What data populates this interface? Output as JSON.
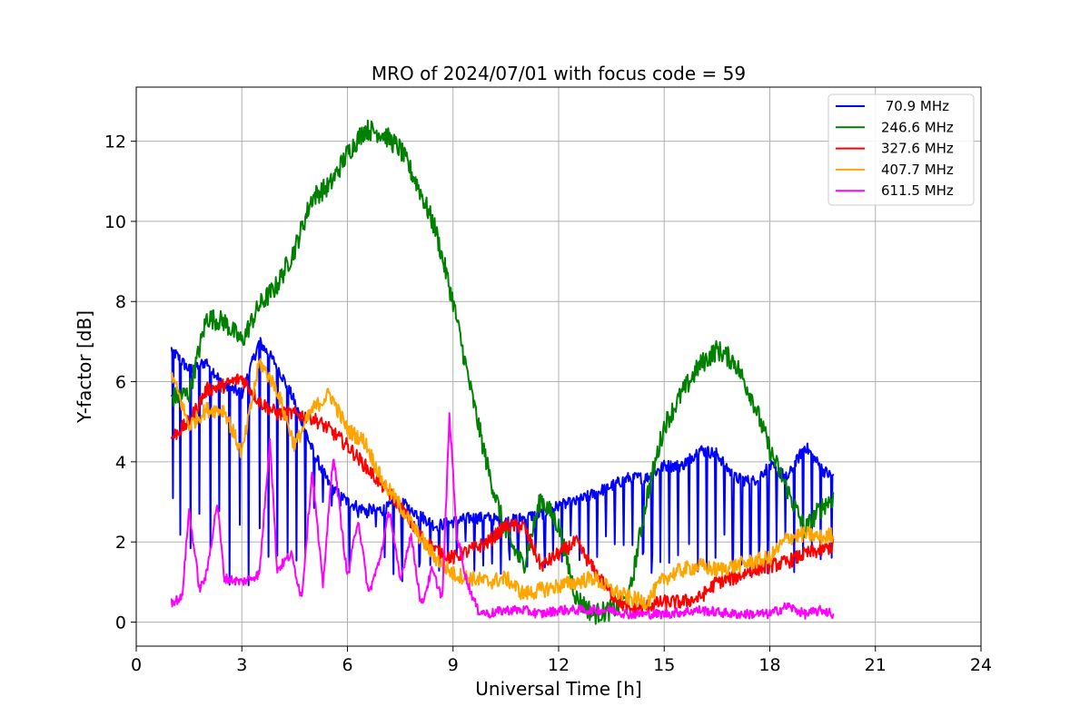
{
  "chart_data": {
    "type": "line",
    "title": "MRO of 2024/07/01 with focus code = 59",
    "xlabel": "Universal Time [h]",
    "ylabel": "Y-factor [dB]",
    "xlim": [
      0,
      24
    ],
    "ylim": [
      -0.6,
      13.35
    ],
    "xticks": [
      0,
      3,
      6,
      9,
      12,
      15,
      18,
      21,
      24
    ],
    "yticks": [
      0,
      2,
      4,
      6,
      8,
      10,
      12
    ],
    "grid": true,
    "legend_position": "top-right",
    "series": [
      {
        "name": " 70.9 MHz",
        "color": "#0000ff",
        "x": [
          1.0,
          1.5,
          2.0,
          2.5,
          3.0,
          3.5,
          4.0,
          4.5,
          5.0,
          5.5,
          6.0,
          6.5,
          7.0,
          7.5,
          8.0,
          8.5,
          9.0,
          9.5,
          10.0,
          10.5,
          11.0,
          11.5,
          12.0,
          12.5,
          13.0,
          13.5,
          14.0,
          14.5,
          15.0,
          15.5,
          16.0,
          16.5,
          17.0,
          17.5,
          18.0,
          18.5,
          19.0,
          19.5,
          19.8
        ],
        "y": [
          6.8,
          6.3,
          6.5,
          5.9,
          5.7,
          7.0,
          6.4,
          5.5,
          4.3,
          3.4,
          3.0,
          2.8,
          2.8,
          3.0,
          2.7,
          2.4,
          2.5,
          2.6,
          2.6,
          2.5,
          2.6,
          2.7,
          2.9,
          3.0,
          3.2,
          3.4,
          3.6,
          3.6,
          3.9,
          3.9,
          4.3,
          4.2,
          3.6,
          3.5,
          3.9,
          3.6,
          4.4,
          3.8,
          3.6
        ],
        "dips": [
          1.05,
          1.25,
          1.55,
          1.8,
          2.1,
          2.35,
          2.65,
          2.95,
          3.2,
          3.5,
          3.75,
          4.0,
          4.3,
          4.55,
          4.8,
          5.05,
          5.3,
          5.55,
          5.8,
          6.05,
          6.3,
          6.55,
          6.8,
          7.05,
          7.3,
          7.55,
          7.8,
          8.05,
          8.35,
          8.6,
          8.85,
          9.1,
          9.35,
          9.6,
          9.85,
          10.1,
          10.35,
          10.6,
          10.85,
          11.1,
          11.35,
          11.6,
          11.85,
          12.1,
          12.35,
          12.6,
          12.85,
          13.1,
          13.35,
          13.6,
          13.85,
          14.1,
          14.4,
          14.65,
          14.9,
          15.15,
          15.4,
          15.7,
          15.95,
          16.2,
          16.45,
          16.7,
          16.95,
          17.2,
          17.45,
          17.7,
          17.95,
          18.2,
          18.45,
          18.7,
          18.95,
          19.2,
          19.45,
          19.75
        ]
      },
      {
        "name": "246.6 MHz",
        "color": "#008000",
        "x": [
          1.0,
          1.5,
          2.0,
          2.5,
          3.0,
          3.5,
          4.0,
          4.5,
          5.0,
          5.5,
          6.0,
          6.5,
          7.0,
          7.5,
          8.0,
          8.5,
          9.0,
          9.5,
          10.0,
          10.5,
          11.0,
          11.5,
          12.0,
          12.5,
          13.0,
          13.5,
          14.0,
          14.5,
          15.0,
          15.5,
          16.0,
          16.5,
          17.0,
          17.5,
          18.0,
          18.5,
          19.0,
          19.5,
          19.8
        ],
        "y": [
          5.6,
          5.7,
          7.6,
          7.5,
          7.0,
          7.9,
          8.4,
          9.3,
          10.6,
          10.9,
          11.7,
          12.3,
          12.2,
          11.8,
          10.9,
          9.8,
          8.0,
          5.8,
          3.8,
          2.2,
          1.4,
          3.1,
          2.4,
          0.6,
          0.2,
          0.3,
          0.6,
          3.1,
          4.9,
          5.7,
          6.4,
          6.8,
          6.5,
          5.6,
          4.3,
          3.3,
          2.3,
          2.9,
          3.1
        ]
      },
      {
        "name": "327.6 MHz",
        "color": "#ff0000",
        "x": [
          1.0,
          1.5,
          2.0,
          2.5,
          3.0,
          3.5,
          4.0,
          4.5,
          5.0,
          5.5,
          6.0,
          6.5,
          7.0,
          7.5,
          8.0,
          8.5,
          9.0,
          9.5,
          10.0,
          10.5,
          11.0,
          11.5,
          12.0,
          12.5,
          13.0,
          13.5,
          14.0,
          14.5,
          15.0,
          15.5,
          16.0,
          16.5,
          17.0,
          17.5,
          18.0,
          18.5,
          19.0,
          19.5,
          19.8
        ],
        "y": [
          4.6,
          5.0,
          5.8,
          5.9,
          6.1,
          5.5,
          5.2,
          5.2,
          5.1,
          4.8,
          4.4,
          3.9,
          3.4,
          2.9,
          2.2,
          1.8,
          1.6,
          1.8,
          2.0,
          2.4,
          2.4,
          1.4,
          1.7,
          2.0,
          1.3,
          0.7,
          0.3,
          0.4,
          0.5,
          0.5,
          0.6,
          1.0,
          1.1,
          1.3,
          1.4,
          1.5,
          1.7,
          1.8,
          1.9
        ]
      },
      {
        "name": "407.7 MHz",
        "color": "#ffa500",
        "x": [
          1.0,
          1.5,
          2.0,
          2.5,
          3.0,
          3.5,
          4.0,
          4.5,
          5.0,
          5.5,
          6.0,
          6.5,
          7.0,
          7.5,
          8.0,
          8.5,
          9.0,
          9.5,
          10.0,
          10.5,
          11.0,
          11.5,
          12.0,
          12.5,
          13.0,
          13.5,
          14.0,
          14.5,
          15.0,
          15.5,
          16.0,
          16.5,
          17.0,
          17.5,
          18.0,
          18.5,
          19.0,
          19.5,
          19.8
        ],
        "y": [
          6.2,
          4.9,
          5.3,
          5.3,
          4.2,
          6.5,
          5.8,
          4.4,
          5.3,
          5.7,
          4.8,
          4.5,
          3.5,
          2.9,
          2.2,
          1.6,
          1.2,
          1.1,
          1.0,
          1.1,
          0.7,
          0.8,
          0.9,
          1.0,
          1.1,
          0.8,
          0.6,
          0.5,
          1.1,
          1.3,
          1.4,
          1.3,
          1.4,
          1.5,
          1.6,
          2.1,
          2.2,
          2.1,
          2.2
        ]
      },
      {
        "name": "611.5 MHz",
        "color": "#ff00ff",
        "x": [
          1.0,
          1.3,
          1.5,
          1.8,
          2.0,
          2.3,
          2.5,
          3.0,
          3.5,
          3.8,
          4.0,
          4.4,
          4.7,
          5.0,
          5.3,
          5.6,
          6.0,
          6.3,
          6.6,
          6.9,
          7.2,
          7.5,
          7.8,
          8.1,
          8.4,
          8.7,
          8.9,
          9.1,
          9.4,
          9.7,
          10.0,
          10.5,
          11.0,
          11.5,
          12.0,
          12.5,
          13.0,
          13.5,
          14.0,
          15.0,
          16.0,
          17.0,
          17.5,
          18.0,
          18.5,
          19.0,
          19.5,
          19.8
        ],
        "y": [
          0.5,
          0.6,
          2.8,
          0.8,
          1.2,
          3.0,
          1.1,
          1.0,
          1.2,
          4.6,
          1.3,
          1.7,
          0.6,
          3.8,
          0.9,
          4.2,
          1.1,
          2.6,
          0.7,
          1.5,
          2.8,
          1.0,
          2.2,
          0.4,
          1.3,
          0.6,
          5.2,
          2.2,
          1.0,
          0.3,
          0.2,
          0.3,
          0.3,
          0.2,
          0.3,
          0.3,
          0.3,
          0.3,
          0.2,
          0.2,
          0.3,
          0.2,
          0.2,
          0.2,
          0.4,
          0.2,
          0.3,
          0.2
        ]
      }
    ]
  }
}
